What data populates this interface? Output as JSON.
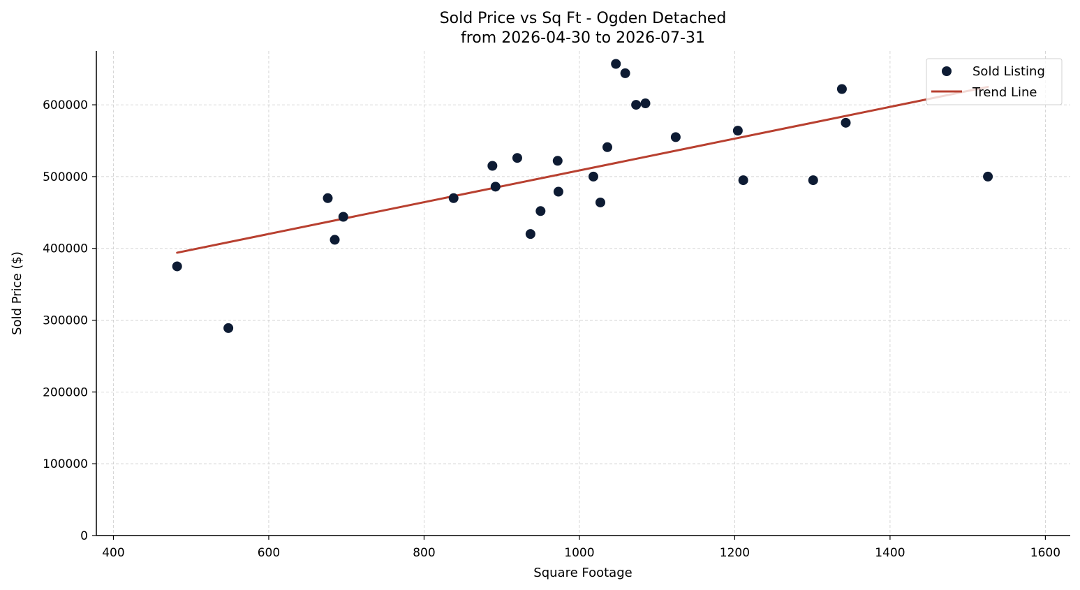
{
  "chart_data": {
    "type": "scatter",
    "title": "Sold Price vs Sq Ft - Ogden Detached",
    "subtitle": "from 2026-04-30 to 2026-07-31",
    "xlabel": "Square Footage",
    "ylabel": "Sold Price ($)",
    "xlim": [
      378,
      1632
    ],
    "ylim": [
      0,
      675000
    ],
    "xticks": [
      400,
      600,
      800,
      1000,
      1200,
      1400,
      1600
    ],
    "yticks": [
      0,
      100000,
      200000,
      300000,
      400000,
      500000,
      600000
    ],
    "grid": true,
    "legend_position": "top-right",
    "series": [
      {
        "name": "Sold Listing",
        "kind": "scatter",
        "color": "#0d1b33",
        "x": [
          482,
          548,
          676,
          685,
          696,
          838,
          888,
          892,
          920,
          937,
          950,
          972,
          973,
          1018,
          1027,
          1036,
          1047,
          1059,
          1073,
          1085,
          1124,
          1204,
          1211,
          1301,
          1338,
          1343,
          1526
        ],
        "y": [
          375000,
          289000,
          470000,
          412000,
          444000,
          470000,
          515000,
          486000,
          526000,
          420000,
          452000,
          522000,
          479000,
          500000,
          464000,
          541000,
          657000,
          644000,
          600000,
          602000,
          555000,
          564000,
          495000,
          495000,
          622000,
          575000,
          500000
        ]
      },
      {
        "name": "Trend Line",
        "kind": "line",
        "color": "#b84030",
        "x": [
          482,
          1526
        ],
        "y": [
          394000,
          625000
        ]
      }
    ]
  }
}
